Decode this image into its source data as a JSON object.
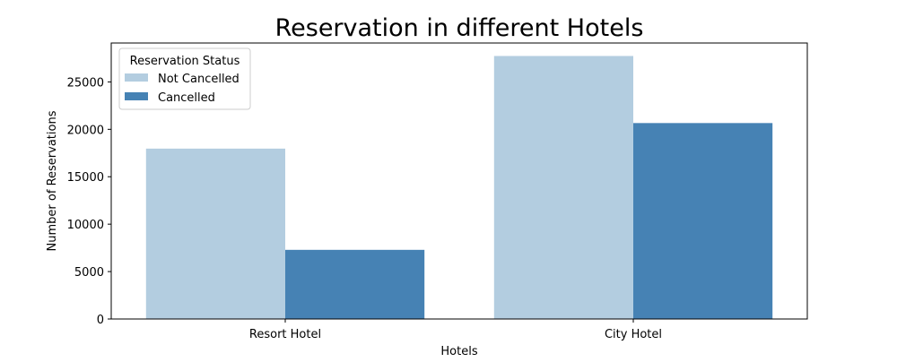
{
  "chart_data": {
    "type": "bar",
    "title": "Reservation in different Hotels",
    "xlabel": "Hotels",
    "ylabel": "Number of Reservations",
    "categories": [
      "Resort Hotel",
      "City Hotel"
    ],
    "series": [
      {
        "name": "Not Cancelled",
        "values": [
          17966,
          27733
        ],
        "color": "#b3cde0"
      },
      {
        "name": "Cancelled",
        "values": [
          7291,
          20660
        ],
        "color": "#4682b4"
      }
    ],
    "ylim": [
      0,
      29101
    ],
    "yticks": [
      0,
      5000,
      10000,
      15000,
      20000,
      25000
    ],
    "grid": false,
    "legend": {
      "title": "Reservation Status",
      "placement": "upper-left"
    }
  }
}
